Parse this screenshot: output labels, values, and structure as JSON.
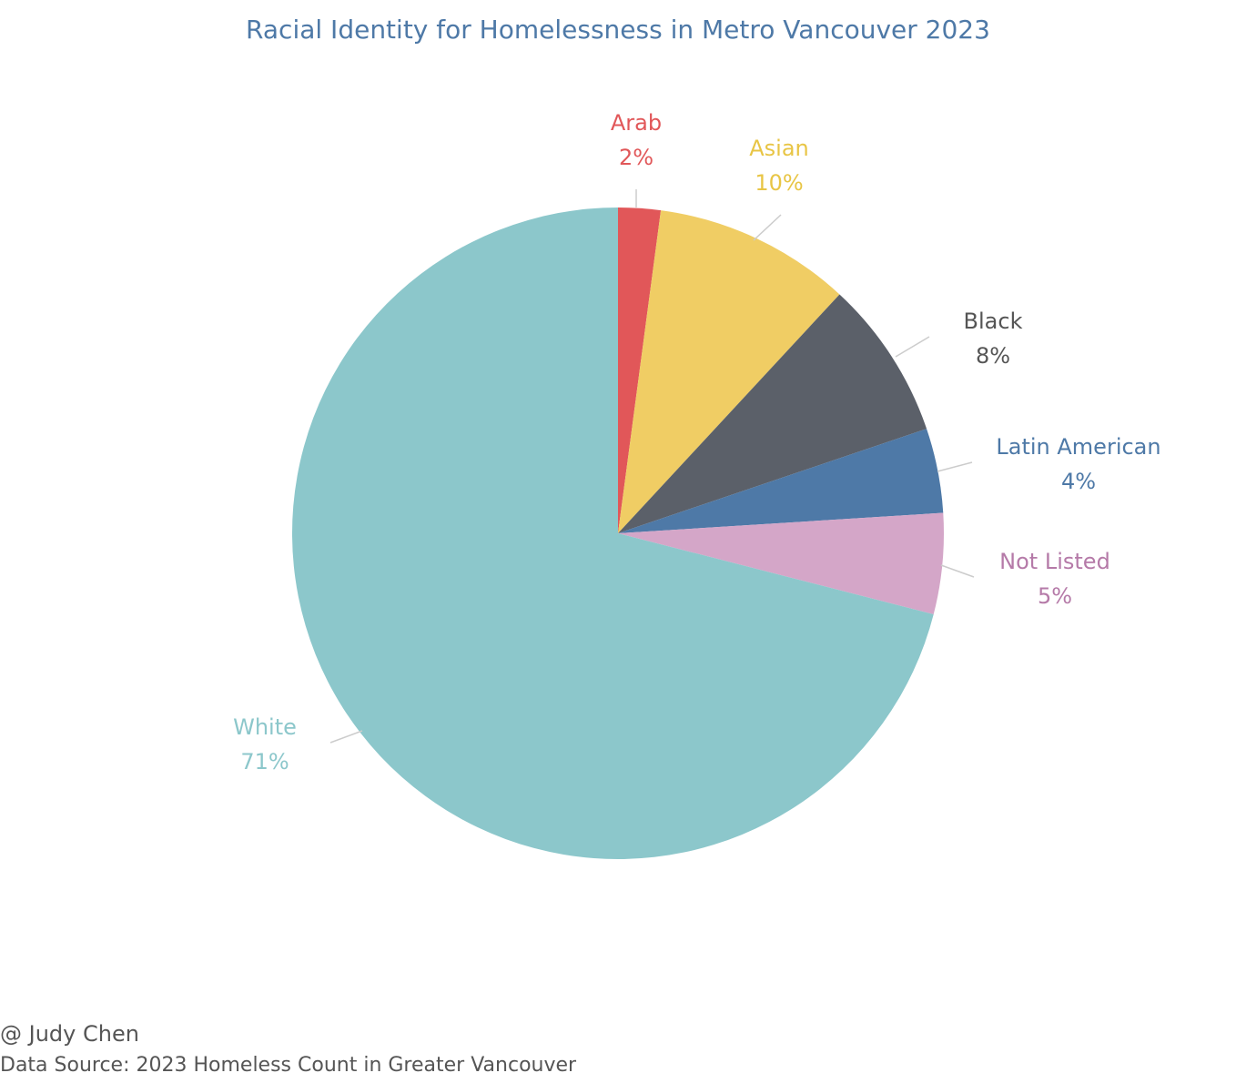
{
  "footer": {
    "credit": "@ Judy Chen",
    "source": "Data Source: 2023 Homeless Count in Greater Vancouver"
  },
  "chart_data": {
    "type": "pie",
    "title": "Racial Identity for Homelessness in Metro Vancouver 2023",
    "start_angle_deg": 0,
    "direction": "clockwise",
    "slices": [
      {
        "label": "Arab",
        "value": 2.1,
        "display": "2%",
        "color": "#e15759"
      },
      {
        "label": "Asian",
        "value": 9.8,
        "display": "10%",
        "color": "#f0cd64"
      },
      {
        "label": "Black",
        "value": 7.9,
        "display": "8%",
        "color": "#5b6069"
      },
      {
        "label": "Latin American",
        "value": 4.2,
        "display": "4%",
        "color": "#4e79a7"
      },
      {
        "label": "Not Listed",
        "value": 5.0,
        "display": "5%",
        "color": "#d4a6c8"
      },
      {
        "label": "White",
        "value": 71.0,
        "display": "71%",
        "color": "#8cc7cb"
      }
    ],
    "label_text_colors": {
      "Arab": "#e15759",
      "Asian": "#e8c545",
      "Black": "#555555",
      "Latin American": "#4e79a7",
      "Not Listed": "#b57aa8",
      "White": "#8cc7cb"
    },
    "leader_line_color": "#cccccc"
  }
}
